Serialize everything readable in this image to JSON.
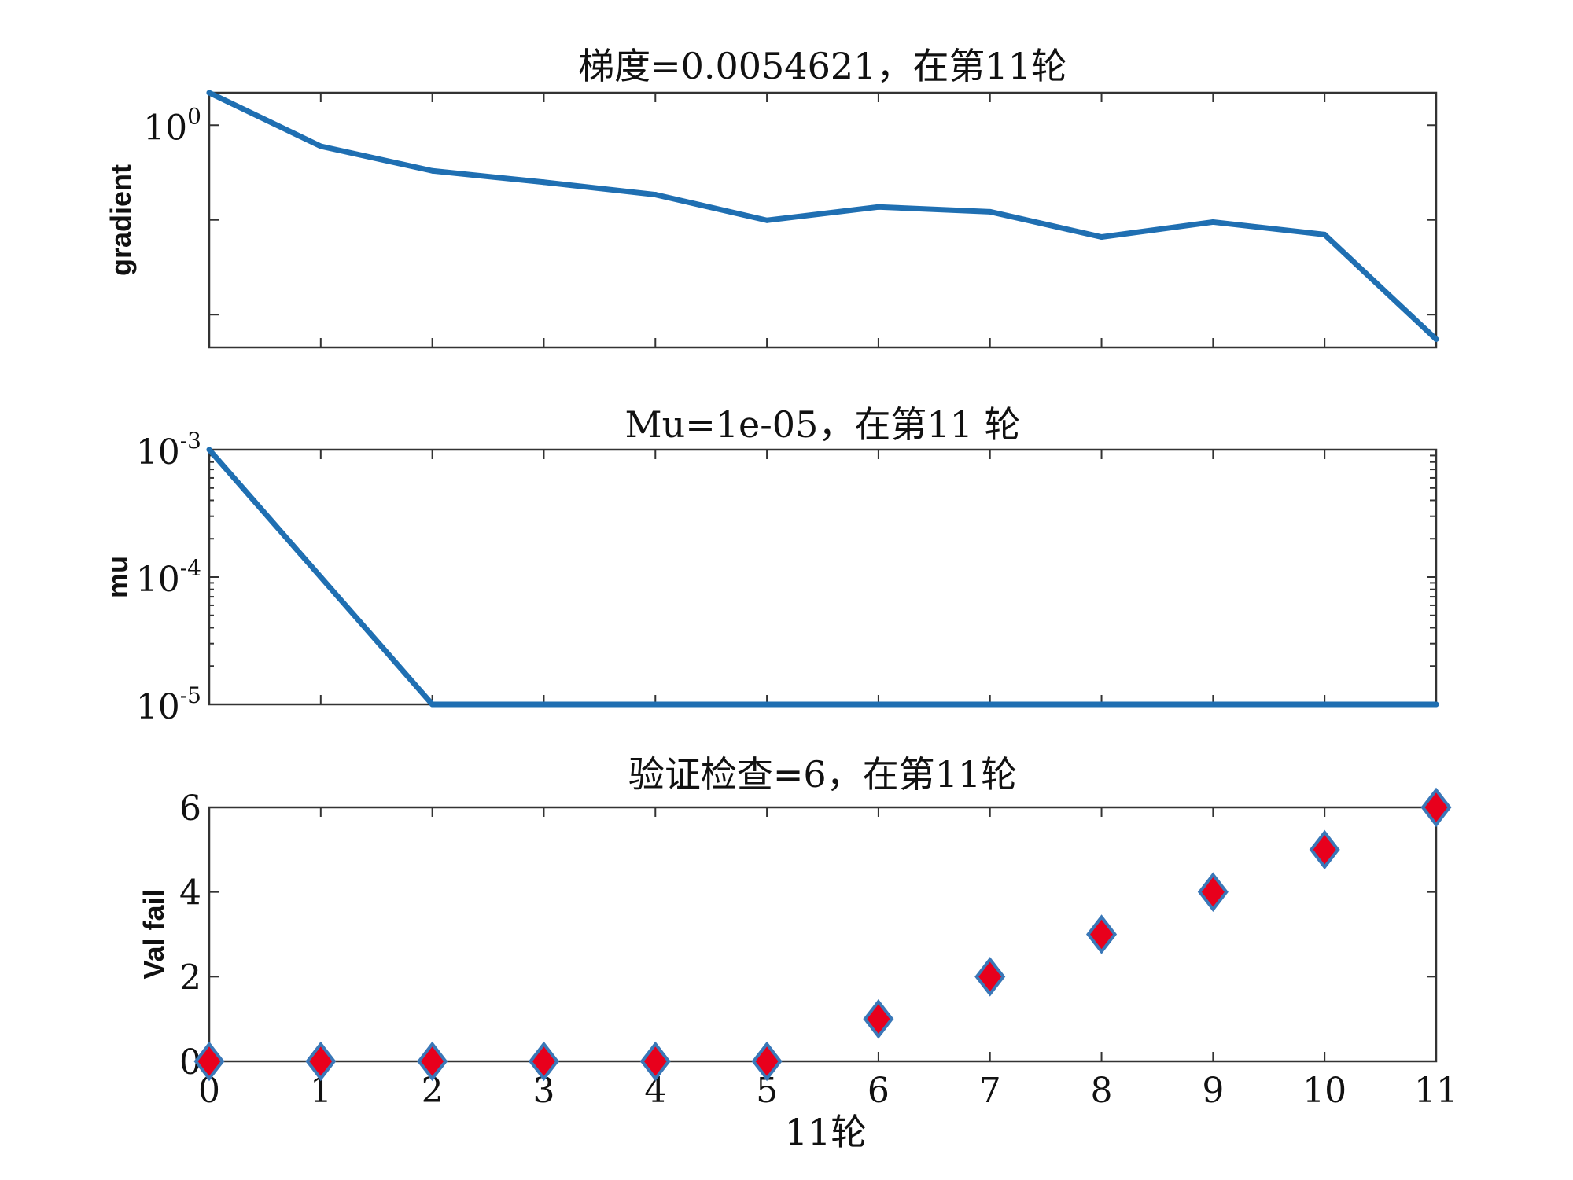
{
  "colors": {
    "line": "#1f6fb2",
    "marker_fill": "#e8001c",
    "marker_edge": "#3a78b8",
    "axes": "#333333"
  },
  "chart_data": [
    {
      "type": "line",
      "title": "梯度=0.0054621，在第11轮",
      "ylabel": "gradient",
      "xlabel": "",
      "yscale": "log",
      "xlim": [
        0,
        11
      ],
      "ylim": [
        0.0045,
        2.2
      ],
      "x": [
        0,
        1,
        2,
        3,
        4,
        5,
        6,
        7,
        8,
        9,
        10,
        11
      ],
      "values": [
        2.2,
        0.6,
        0.33,
        0.25,
        0.185,
        0.099,
        0.137,
        0.122,
        0.066,
        0.095,
        0.07,
        0.0055
      ],
      "ytick_labels": [
        {
          "value": 1,
          "base": "10",
          "exp": "0"
        }
      ],
      "minor_ticks": [
        0.01,
        0.1
      ],
      "grid": false
    },
    {
      "type": "line",
      "title": "Mu=1e-05，在第11 轮",
      "ylabel": "mu",
      "xlabel": "",
      "yscale": "log",
      "xlim": [
        0,
        11
      ],
      "ylim": [
        1e-05,
        0.001
      ],
      "x": [
        0,
        1,
        2,
        3,
        4,
        5,
        6,
        7,
        8,
        9,
        10,
        11
      ],
      "values": [
        0.001,
        0.0001,
        1e-05,
        1e-05,
        1e-05,
        1e-05,
        1e-05,
        1e-05,
        1e-05,
        1e-05,
        1e-05,
        1e-05
      ],
      "ytick_labels": [
        {
          "value": 0.001,
          "base": "10",
          "exp": "-3"
        },
        {
          "value": 0.0001,
          "base": "10",
          "exp": "-4"
        },
        {
          "value": 1e-05,
          "base": "10",
          "exp": "-5"
        }
      ],
      "grid": false
    },
    {
      "type": "scatter",
      "title": "验证检查=6，在第11轮",
      "ylabel": "Val fail",
      "xlabel": "11轮",
      "xlim": [
        0,
        11
      ],
      "ylim": [
        0,
        6
      ],
      "x": [
        0,
        1,
        2,
        3,
        4,
        5,
        6,
        7,
        8,
        9,
        10,
        11
      ],
      "values": [
        0,
        0,
        0,
        0,
        0,
        0,
        1,
        2,
        3,
        4,
        5,
        6
      ],
      "yticks": [
        0,
        2,
        4,
        6
      ],
      "ytick_labels": [
        "0",
        "2",
        "4",
        "6"
      ],
      "xtick_labels": [
        "0",
        "1",
        "2",
        "3",
        "4",
        "5",
        "6",
        "7",
        "8",
        "9",
        "10",
        "11"
      ],
      "marker": "diamond",
      "grid": false
    }
  ]
}
